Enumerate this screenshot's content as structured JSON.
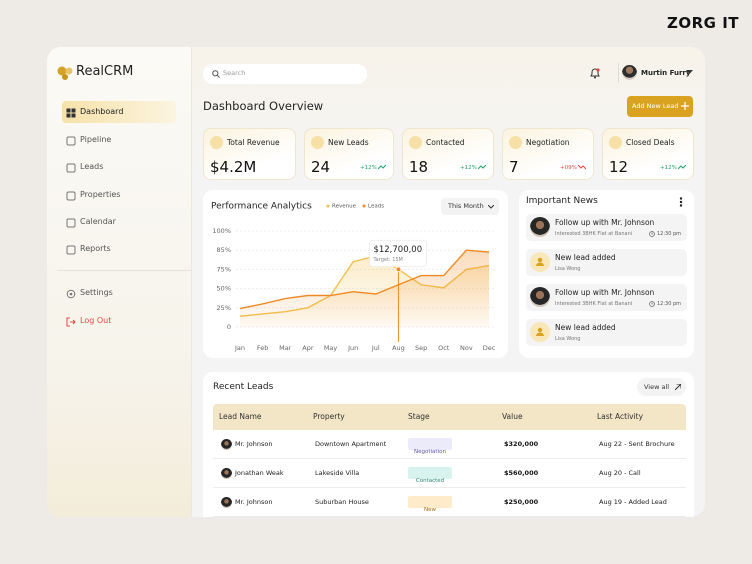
{
  "brand": "ZORG IT",
  "sidebar": {
    "logo": "RealCRM",
    "menu": [
      "Dashboard",
      "Pipeline",
      "Leads",
      "Properties",
      "Calendar",
      "Reports"
    ],
    "settings": "Settings",
    "logout": "Log Out"
  },
  "header": {
    "search": "Search",
    "user": "Murtin Furry",
    "title": "Dashboard Overview",
    "button": "Add New Lead"
  },
  "stats": [
    {
      "label": "Total Revenue",
      "value": "$4.2M"
    },
    {
      "label": "New Leads",
      "value": 24,
      "change": "+12%",
      "trend": "up"
    },
    {
      "label": "Contacted",
      "value": 18,
      "change": "+12%",
      "trend": "up"
    },
    {
      "label": "Negotiation",
      "value": 7,
      "change": "+09%",
      "trend": "down"
    },
    {
      "label": "Closed Deals",
      "value": 12,
      "change": "+12%",
      "trend": "up"
    }
  ],
  "chart_data": {
    "type": "line",
    "title": "Performance Analytics",
    "period": "This Month",
    "categories": [
      "Jan",
      "Feb",
      "Mar",
      "Apr",
      "May",
      "Jun",
      "Jul",
      "Aug",
      "Sep",
      "Oct",
      "Nov",
      "Dec"
    ],
    "series": [
      {
        "name": "Revenue",
        "color": "#f2c14e",
        "values": [
          14,
          17,
          20,
          25,
          41,
          79,
          82,
          75,
          55,
          51,
          75,
          77
        ]
      },
      {
        "name": "Leads",
        "color": "#f08a24",
        "values": [
          24,
          30,
          37,
          41,
          41,
          46,
          43,
          55,
          67,
          67,
          85,
          84
        ]
      }
    ],
    "ylim": [
      0,
      100
    ],
    "yticks": [
      {
        "value": 100,
        "label": "100%"
      },
      {
        "value": 85,
        "label": "85%"
      },
      {
        "value": 75,
        "label": "75%"
      },
      {
        "value": 50,
        "label": "50%"
      },
      {
        "value": 25,
        "label": "25%"
      },
      0
    ],
    "grid": true,
    "annotation": {
      "category": 7,
      "label": "$12,700,00",
      "note": "Target: 15M"
    }
  },
  "news": {
    "title": "Important News",
    "items": [
      {
        "title": "Follow up with Mr. Johnson",
        "subtitle": "Interested 3BHK Flat at Banani",
        "time": "12:30 pm"
      },
      {
        "title": "New lead added",
        "subtitle": "Lisa Wong"
      },
      {
        "title": "Follow up with Mr. Johnson",
        "subtitle": "Interested 3BHK Flat at Banani",
        "time": "12:30 pm"
      },
      {
        "title": "New lead added",
        "subtitle": "Lisa Wong"
      }
    ]
  },
  "leads": {
    "title": "Recent Leads",
    "action": "View all",
    "columns": [
      "Lead Name",
      "Property",
      "Stage",
      "Value",
      "Last Activity"
    ],
    "rows": [
      [
        "Mr. Johnson",
        "Downtown Apartment",
        "Negotiation",
        "$320,000",
        "Aug 22 - Sent Brochure"
      ],
      [
        "Jonathan Weak",
        "Lakeside Villa",
        "Contacted",
        "$560,000",
        "Aug 20 - Call"
      ],
      [
        "Mr. Johnson",
        "Suburban House",
        "New",
        "$250,000",
        "Aug 19 - Added Lead"
      ]
    ]
  }
}
